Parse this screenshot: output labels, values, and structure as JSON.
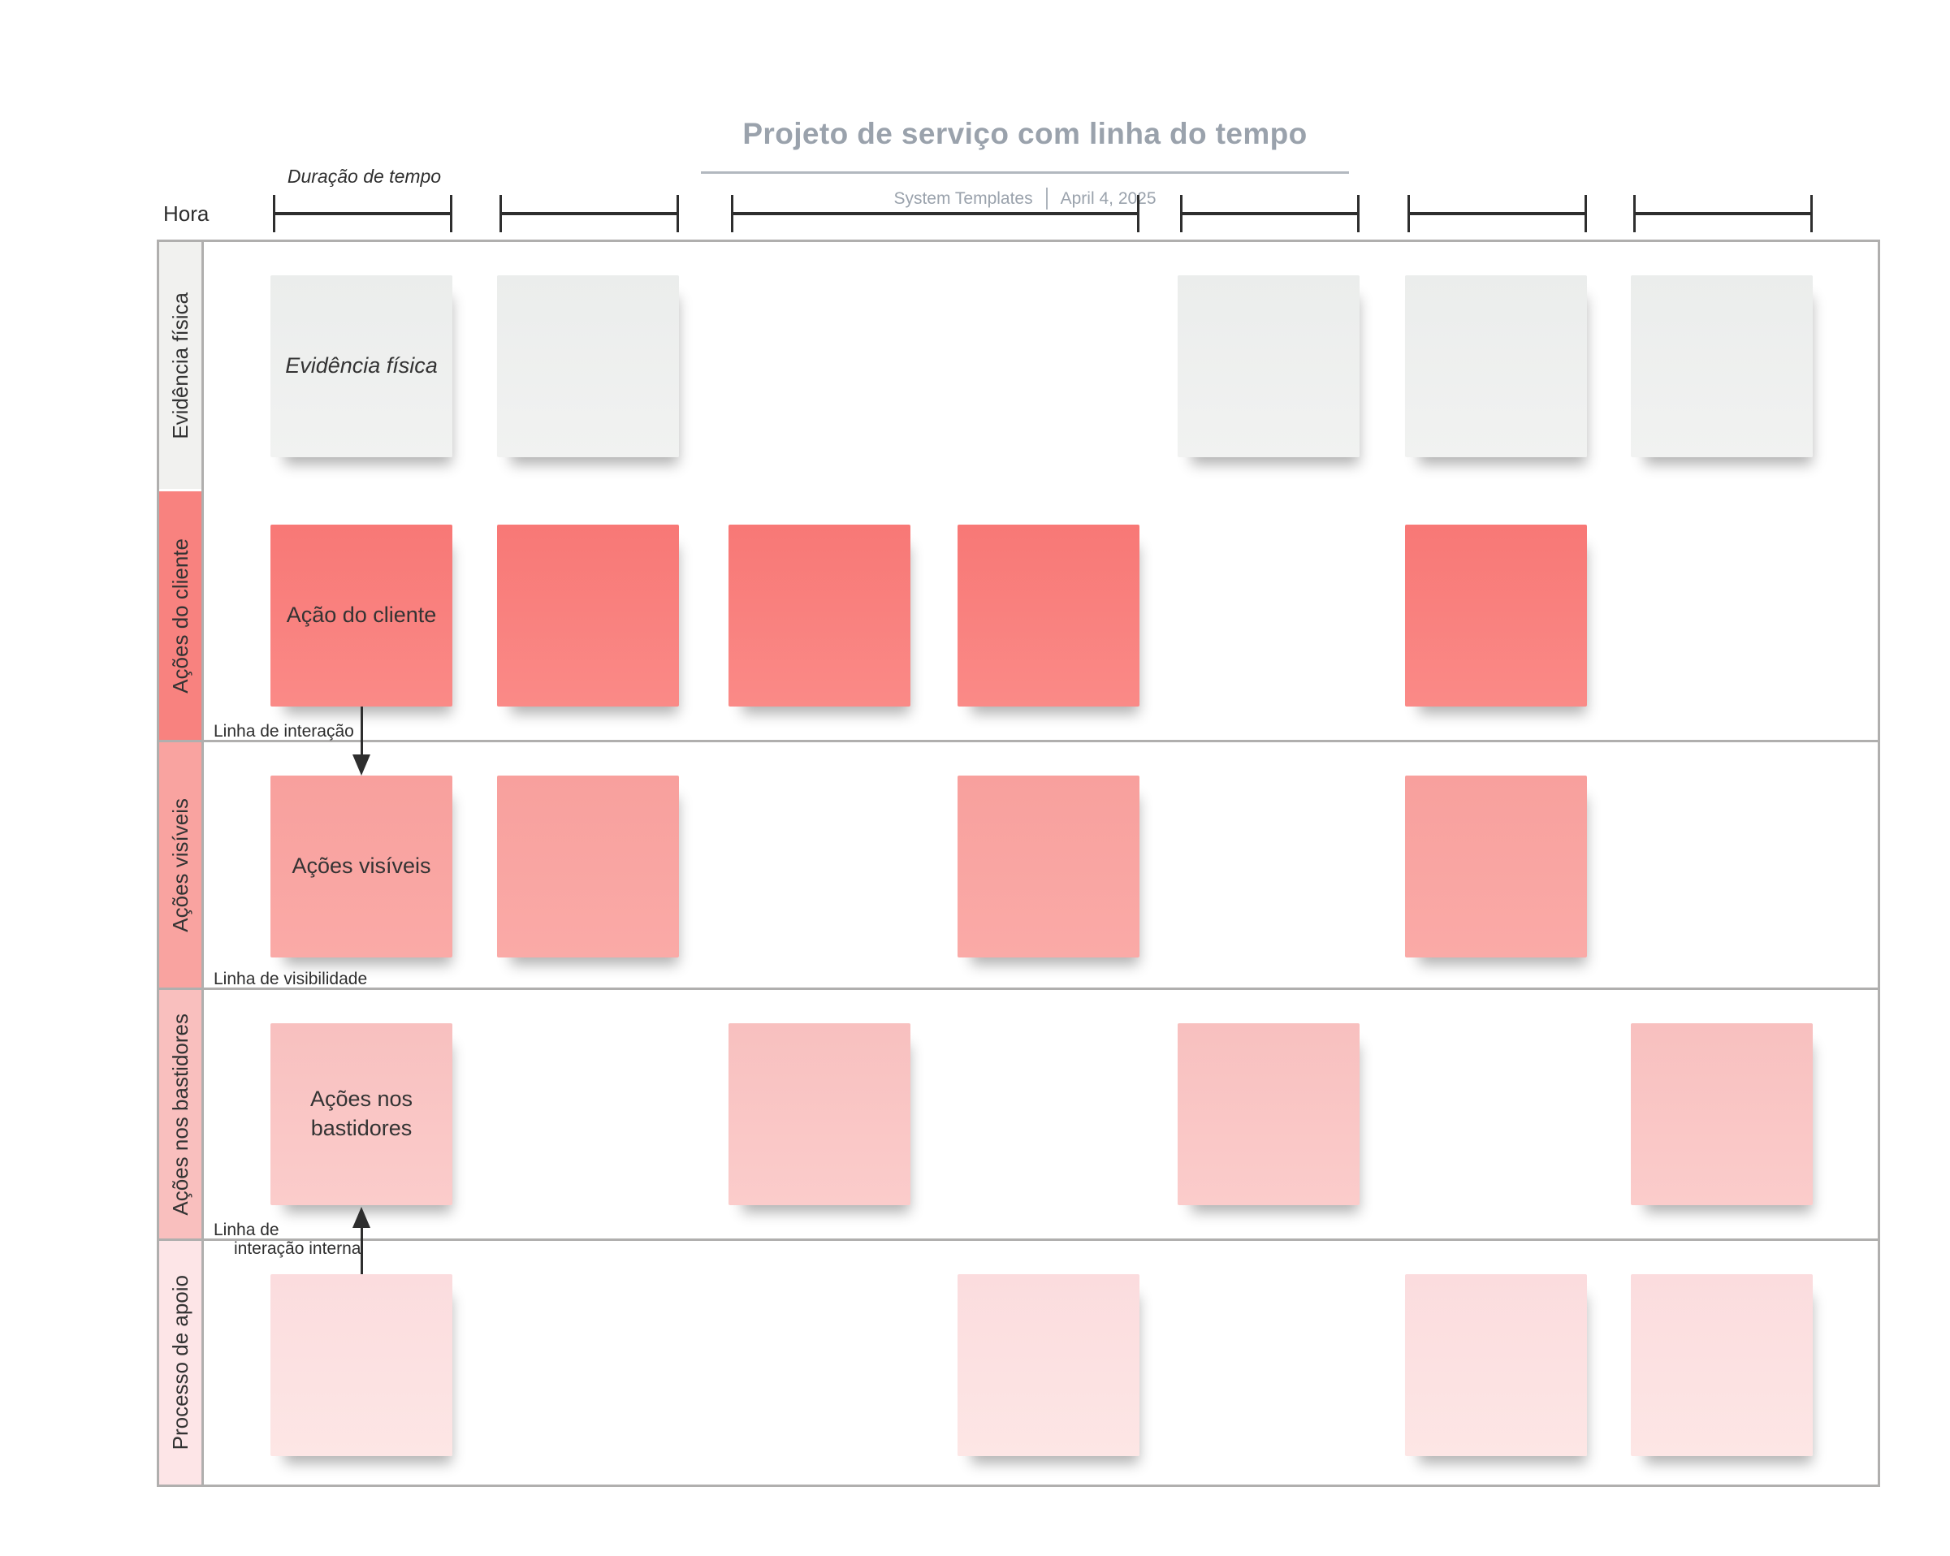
{
  "header": {
    "title": "Projeto de serviço com linha do tempo",
    "byline": "System Templates",
    "date": "April 4, 2025"
  },
  "timeline": {
    "hora_label": "Hora",
    "duration_label": "Duração de tempo",
    "brackets": [
      {
        "from_col": 1,
        "to_col": 1
      },
      {
        "from_col": 2,
        "to_col": 2
      },
      {
        "from_col": 3,
        "to_col": 4
      },
      {
        "from_col": 5,
        "to_col": 5
      },
      {
        "from_col": 6,
        "to_col": 6
      },
      {
        "from_col": 7,
        "to_col": 7
      }
    ]
  },
  "grid": {
    "rows": [
      {
        "label": "Evidência física",
        "label_bg": "#f1f1ef",
        "note_top_color": "#ebedec",
        "note_bottom_color": "#f1f2f1",
        "note_text_color": "#333333",
        "italic": true,
        "notes": [
          {
            "col": 1,
            "text": "Evidência física"
          },
          {
            "col": 2,
            "text": ""
          },
          {
            "col": 5,
            "text": ""
          },
          {
            "col": 6,
            "text": ""
          },
          {
            "col": 7,
            "text": ""
          }
        ]
      },
      {
        "label": "Ações do cliente",
        "label_bg": "#f8827f",
        "note_top_color": "#f87876",
        "note_bottom_color": "#fa8a87",
        "note_text_color": "#333333",
        "italic": false,
        "notes": [
          {
            "col": 1,
            "text": "Ação do cliente"
          },
          {
            "col": 2,
            "text": ""
          },
          {
            "col": 3,
            "text": ""
          },
          {
            "col": 4,
            "text": ""
          },
          {
            "col": 6,
            "text": ""
          }
        ]
      },
      {
        "label": "Ações visíveis",
        "label_bg": "#f9a3a0",
        "note_top_color": "#f8a09d",
        "note_bottom_color": "#faaaa7",
        "note_text_color": "#333333",
        "italic": false,
        "notes": [
          {
            "col": 1,
            "text": "Ações visíveis"
          },
          {
            "col": 2,
            "text": ""
          },
          {
            "col": 4,
            "text": ""
          },
          {
            "col": 6,
            "text": ""
          }
        ]
      },
      {
        "label": "Ações nos bastidores",
        "label_bg": "#f9bfbe",
        "note_top_color": "#f8c0bf",
        "note_bottom_color": "#fbcccb",
        "note_text_color": "#333333",
        "italic": false,
        "notes": [
          {
            "col": 1,
            "text": "Ações nos bastidores"
          },
          {
            "col": 3,
            "text": ""
          },
          {
            "col": 5,
            "text": ""
          },
          {
            "col": 7,
            "text": ""
          }
        ]
      },
      {
        "label": "Processo de apoio",
        "label_bg": "#fde5e7",
        "note_top_color": "#fbdcde",
        "note_bottom_color": "#fde6e5",
        "note_text_color": "#333333",
        "italic": false,
        "notes": [
          {
            "col": 1,
            "text": ""
          },
          {
            "col": 4,
            "text": ""
          },
          {
            "col": 6,
            "text": ""
          },
          {
            "col": 7,
            "text": ""
          }
        ]
      }
    ],
    "separators": [
      {
        "below_row": 2,
        "label_lines": [
          "Linha de interação"
        ]
      },
      {
        "below_row": 3,
        "label_lines": [
          "Linha de visibilidade"
        ]
      },
      {
        "below_row": 4,
        "label_lines": [
          "Linha de",
          "interação interna"
        ]
      }
    ],
    "arrows": [
      {
        "col": 1,
        "from_row": 2,
        "to_row": 3,
        "direction": "down"
      },
      {
        "col": 1,
        "from_row": 5,
        "to_row": 4,
        "direction": "up"
      }
    ]
  },
  "colors": {
    "title": "#9aa2ac",
    "subtitle": "#9aa2ac",
    "underline": "#b2b8bf",
    "subtitle_bar": "#adb4bc",
    "grid_border": "#b0afae",
    "ink": "#2e2e2e",
    "label_text": "#333333"
  }
}
